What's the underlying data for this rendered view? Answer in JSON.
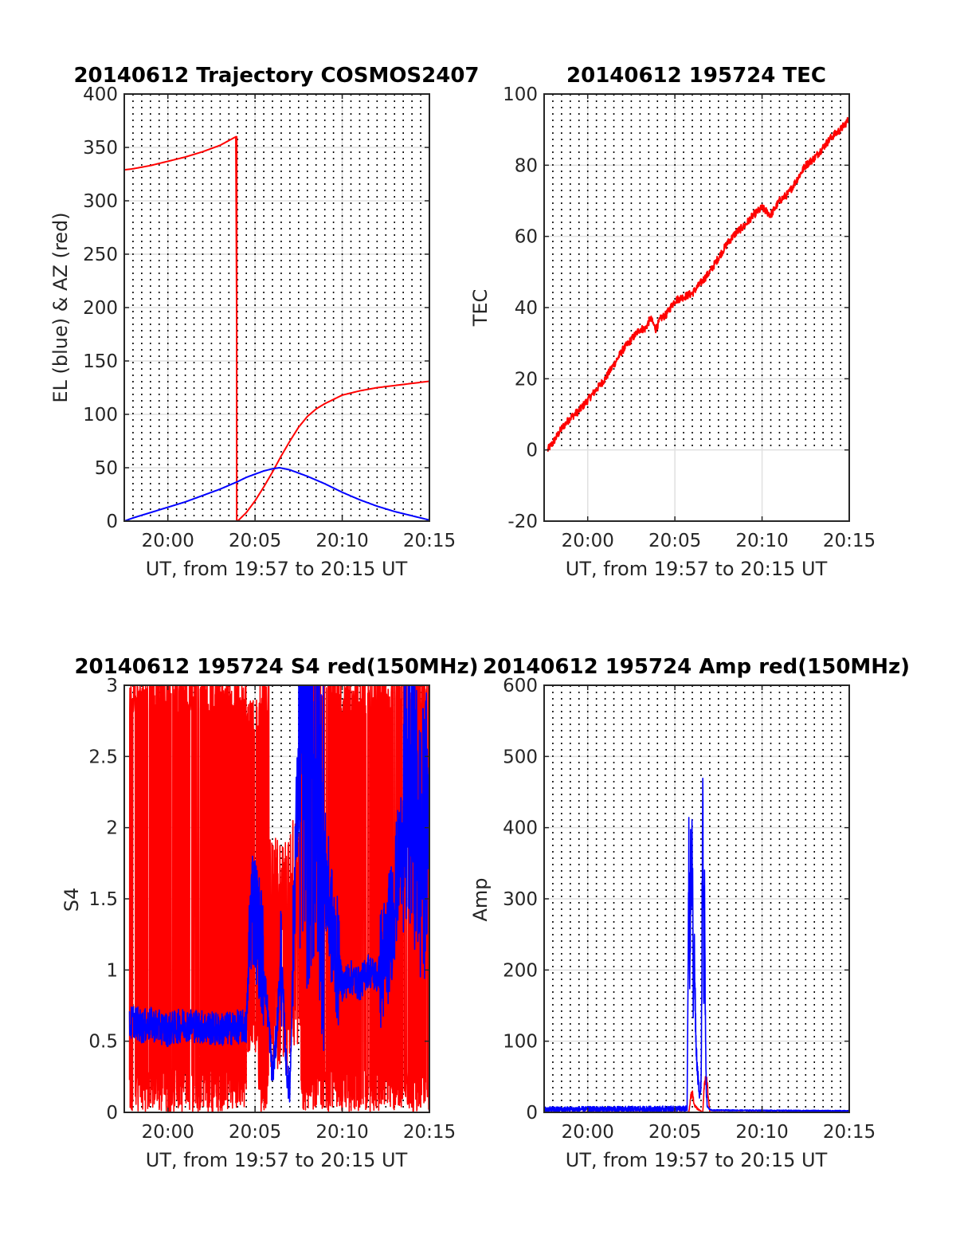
{
  "chart_data": [
    {
      "type": "line",
      "title": "20140612 Trajectory COSMOS2407",
      "xlabel": "UT, from 19:57 to 20:15 UT",
      "ylabel": "EL (blue) & AZ (red)",
      "xlim_min": [
        1197.5,
        1215
      ],
      "xticks": [
        1200,
        1205,
        1210,
        1215
      ],
      "xtick_labels": [
        "20:00",
        "20:05",
        "20:10",
        "20:15"
      ],
      "ylim": [
        0,
        400
      ],
      "yticks": [
        0,
        50,
        100,
        150,
        200,
        250,
        300,
        350,
        400
      ],
      "ytick_labels": [
        "0",
        "50",
        "100",
        "150",
        "200",
        "250",
        "300",
        "350",
        "400"
      ],
      "grid": "dotted vertical every 30 s, solid horizontal",
      "series": [
        {
          "color": "#ff0000",
          "x": [
            1197.5,
            1198,
            1199,
            1200,
            1201,
            1202,
            1203,
            1203.9,
            1204.0,
            1204.5,
            1205,
            1205.5,
            1206,
            1206.5,
            1207,
            1207.5,
            1208,
            1208.5,
            1209,
            1210,
            1211,
            1212,
            1213,
            1214,
            1215
          ],
          "values": [
            329,
            330,
            333,
            337,
            341,
            346,
            352,
            360,
            0,
            8,
            19,
            32,
            46,
            61,
            75,
            88,
            98,
            105,
            110,
            118,
            122,
            125,
            127,
            129,
            131
          ]
        },
        {
          "color": "#0000ff",
          "x": [
            1197.5,
            1198,
            1199,
            1200,
            1201,
            1202,
            1203,
            1204,
            1204.5,
            1205,
            1205.5,
            1206,
            1206.4,
            1207,
            1207.5,
            1208,
            1209,
            1210,
            1211,
            1212,
            1213,
            1214,
            1215
          ],
          "values": [
            0,
            3,
            8,
            13,
            18,
            24,
            30,
            37,
            41,
            44,
            47,
            49,
            50,
            48,
            45,
            42,
            35,
            27,
            20,
            14,
            9,
            5,
            1
          ]
        }
      ]
    },
    {
      "type": "line",
      "title": "20140612 195724 TEC",
      "xlabel": "UT, from 19:57 to 20:15 UT",
      "ylabel": "TEC",
      "xlim_min": [
        1197.5,
        1215
      ],
      "xticks": [
        1200,
        1205,
        1210,
        1215
      ],
      "xtick_labels": [
        "20:00",
        "20:05",
        "20:10",
        "20:15"
      ],
      "ylim": [
        -20,
        100
      ],
      "yticks": [
        -20,
        0,
        20,
        40,
        60,
        80,
        100
      ],
      "ytick_labels": [
        "-20",
        "0",
        "20",
        "40",
        "60",
        "80",
        "100"
      ],
      "grid": "dotted vertical, solid horizontal",
      "series": [
        {
          "color": "#ff0000",
          "x": [
            1197.7,
            1198,
            1198.5,
            1199,
            1199.5,
            1200,
            1200.5,
            1201,
            1201.5,
            1202,
            1202.5,
            1203,
            1203.3,
            1203.6,
            1203.9,
            1204.2,
            1204.5,
            1205,
            1205.5,
            1206,
            1206.5,
            1207,
            1207.5,
            1208,
            1208.5,
            1209,
            1209.5,
            1210,
            1210.5,
            1211,
            1211.5,
            1212,
            1212.5,
            1213,
            1213.5,
            1214,
            1214.5,
            1215
          ],
          "values": [
            0,
            2,
            6,
            9,
            11,
            14,
            17,
            20,
            24,
            28,
            31,
            34,
            34,
            37,
            34,
            37,
            38,
            42,
            43,
            44,
            47,
            50,
            54,
            58,
            61,
            63,
            66,
            68,
            66,
            70,
            72,
            76,
            80,
            82,
            85,
            88,
            90,
            93
          ]
        }
      ]
    },
    {
      "type": "line",
      "title": "20140612 195724 S4 red(150MHz)",
      "xlabel": "UT, from 19:57 to 20:15 UT",
      "ylabel": "S4",
      "xlim_min": [
        1197.5,
        1215
      ],
      "xticks": [
        1200,
        1205,
        1210,
        1215
      ],
      "xtick_labels": [
        "20:00",
        "20:05",
        "20:10",
        "20:15"
      ],
      "ylim": [
        0,
        3
      ],
      "yticks": [
        0,
        0.5,
        1,
        1.5,
        2,
        2.5,
        3
      ],
      "ytick_labels": [
        "0",
        "0.5",
        "1",
        "1.5",
        "2",
        "2.5",
        "3"
      ],
      "grid": "dotted vertical, solid horizontal",
      "series": [
        {
          "color": "#ff0000",
          "x": [
            1197.8,
            1204.1,
            1204.7,
            1205.4,
            1206.3,
            1207.7,
            1208.5,
            1213.3,
            1213.5,
            1215
          ],
          "values": [
            0.6,
            0.6,
            0.5,
            1.3,
            0.4,
            2.8,
            1.5,
            1.0,
            0.7,
            1.3
          ]
        },
        {
          "color": "#0000ff",
          "x": [
            1197.8,
            1198,
            1198.5,
            1199,
            1200,
            1200.5,
            1201,
            1202,
            1203,
            1204,
            1204.5,
            1204.8,
            1205,
            1205.3,
            1205.5,
            1205.8,
            1206,
            1206.2,
            1206.5,
            1206.8,
            1207,
            1207.3,
            1207.5,
            1207.8,
            1208,
            1208.5,
            1209,
            1209.5,
            1210,
            1210.5,
            1211,
            1211.5,
            1212,
            1212.5,
            1213,
            1213.5,
            1214,
            1214.5,
            1215
          ],
          "values": [
            0.6,
            0.65,
            0.6,
            0.62,
            0.58,
            0.6,
            0.62,
            0.6,
            0.58,
            0.6,
            0.6,
            1.5,
            1.4,
            1.2,
            1.0,
            0.6,
            0.25,
            0.5,
            1.1,
            0.3,
            0.15,
            1.8,
            2.3,
            2.6,
            2.2,
            2.4,
            1.7,
            1.2,
            0.9,
            0.95,
            0.9,
            1.0,
            0.95,
            1.1,
            1.5,
            2.0,
            2.3,
            1.8,
            2.1
          ]
        }
      ]
    },
    {
      "type": "line",
      "title": "20140612 195724 Amp red(150MHz)",
      "xlabel": "UT, from 19:57 to 20:15 UT",
      "ylabel": "Amp",
      "xlim_min": [
        1197.5,
        1215
      ],
      "xticks": [
        1200,
        1205,
        1210,
        1215
      ],
      "xtick_labels": [
        "20:00",
        "20:05",
        "20:10",
        "20:15"
      ],
      "ylim": [
        0,
        600
      ],
      "yticks": [
        0,
        100,
        200,
        300,
        400,
        500,
        600
      ],
      "ytick_labels": [
        "0",
        "100",
        "200",
        "300",
        "400",
        "500",
        "600"
      ],
      "grid": "dotted vertical, solid horizontal",
      "series": [
        {
          "color": "#ff0000",
          "x": [
            1197.5,
            1205.8,
            1205.9,
            1206.0,
            1206.1,
            1206.3,
            1206.6,
            1206.7,
            1206.8,
            1207.0,
            1215
          ],
          "values": [
            0,
            0,
            20,
            30,
            10,
            5,
            0,
            40,
            50,
            0,
            0
          ]
        },
        {
          "color": "#0000ff",
          "x": [
            1197.5,
            1205.7,
            1205.8,
            1205.85,
            1205.9,
            1205.95,
            1206.0,
            1206.05,
            1206.1,
            1206.2,
            1206.3,
            1206.4,
            1206.5,
            1206.55,
            1206.6,
            1206.65,
            1206.7,
            1206.75,
            1206.8,
            1206.85,
            1206.95,
            1207.1,
            1215
          ],
          "values": [
            4,
            5,
            340,
            200,
            320,
            290,
            370,
            150,
            250,
            100,
            60,
            20,
            40,
            200,
            510,
            150,
            310,
            120,
            30,
            10,
            5,
            3,
            2
          ]
        }
      ]
    }
  ]
}
